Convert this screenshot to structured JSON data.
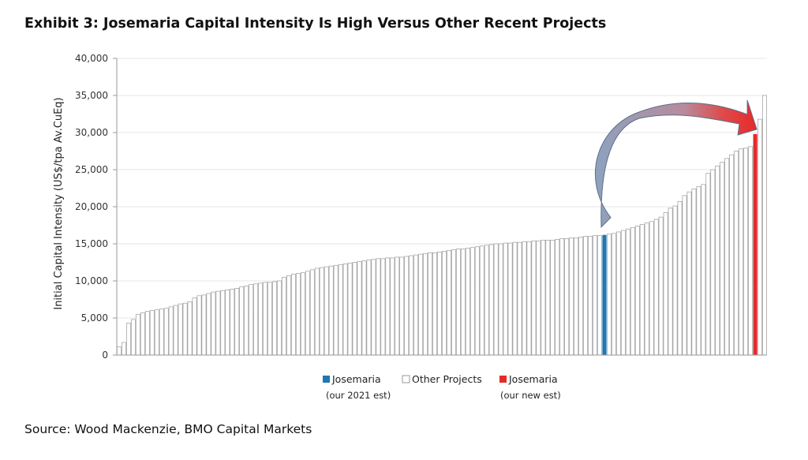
{
  "title": "Exhibit 3:  Josemaria Capital Intensity Is High Versus Other Recent Projects",
  "source": "Source: Wood Mackenzie, BMO Capital Markets",
  "colors": {
    "other": "#ffffff",
    "other_stroke": "#9a9a9a",
    "josemaria_2021": "#1f77b4",
    "josemaria_new": "#e32b2b",
    "arrow_fill": "#8a9fba",
    "arrow_red": "#e53535"
  },
  "chart_data": {
    "type": "bar",
    "ylabel": "Initial Capital Intensity (US$/tpa Av.CuEq)",
    "ylim": [
      0,
      40000
    ],
    "yticks": [
      "0",
      "5,000",
      "10,000",
      "15,000",
      "20,000",
      "25,000",
      "30,000",
      "35,000",
      "40,000"
    ],
    "grid": true,
    "legend_position": "bottom",
    "series": [
      {
        "name": "Josemaria",
        "sublabel": "(our 2021 est)",
        "color_key": "josemaria_2021",
        "indices": [
          103
        ]
      },
      {
        "name": "Other Projects",
        "sublabel": "",
        "color_key": "other"
      },
      {
        "name": "Josemaria",
        "sublabel": "(our  new est)",
        "color_key": "josemaria_new",
        "indices": [
          135
        ]
      }
    ],
    "highlight_indices": {
      "103": "josemaria_2021",
      "135": "josemaria_new"
    },
    "values": [
      1100,
      1700,
      4300,
      4800,
      5500,
      5700,
      5900,
      6000,
      6100,
      6200,
      6300,
      6500,
      6700,
      6900,
      7000,
      7200,
      7700,
      8000,
      8100,
      8300,
      8500,
      8600,
      8700,
      8800,
      8900,
      9000,
      9200,
      9300,
      9500,
      9600,
      9700,
      9800,
      9800,
      9900,
      10000,
      10500,
      10700,
      10900,
      11000,
      11100,
      11300,
      11500,
      11700,
      11800,
      11900,
      12000,
      12100,
      12200,
      12300,
      12400,
      12500,
      12600,
      12700,
      12800,
      12900,
      13000,
      13000,
      13100,
      13100,
      13200,
      13200,
      13300,
      13400,
      13500,
      13600,
      13700,
      13800,
      13800,
      13900,
      14000,
      14100,
      14200,
      14300,
      14300,
      14400,
      14500,
      14600,
      14700,
      14800,
      14900,
      15000,
      15000,
      15100,
      15100,
      15200,
      15200,
      15300,
      15300,
      15400,
      15400,
      15500,
      15500,
      15500,
      15600,
      15700,
      15700,
      15800,
      15800,
      15900,
      16000,
      16000,
      16100,
      16100,
      16200,
      16300,
      16400,
      16600,
      16800,
      17000,
      17200,
      17400,
      17600,
      17800,
      18000,
      18300,
      18600,
      19200,
      19800,
      20100,
      20700,
      21500,
      22000,
      22400,
      22700,
      23000,
      24500,
      25000,
      25500,
      26000,
      26500,
      27000,
      27500,
      27800,
      27900,
      28100,
      29800,
      31800,
      35000
    ]
  },
  "arrow": {
    "from_index": 103,
    "to_index": 135
  }
}
